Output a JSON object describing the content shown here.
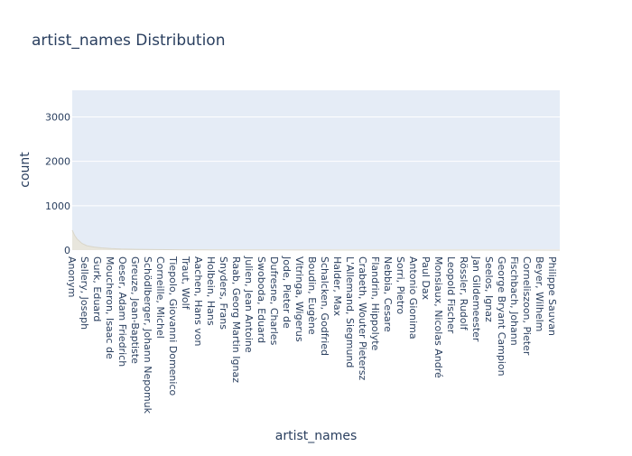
{
  "title": "artist_names Distribution",
  "chart_data": {
    "type": "area",
    "title": "artist_names Distribution",
    "xlabel": "artist_names",
    "ylabel": "count",
    "ylim": [
      0,
      3600
    ],
    "yticks": [
      0,
      1000,
      2000,
      3000
    ],
    "ytick_labels": [
      "0",
      "1000",
      "2000",
      "3000"
    ],
    "grid": true,
    "legend": "none",
    "colors": {
      "plot_bg": "#e5ecf6",
      "grid": "#ffffff",
      "fill": "#e8e6dd",
      "line": "#d9d6ca",
      "text": "#2a3f5f"
    },
    "x_tick_labels": [
      "Anonym",
      "Sellery, Joseph",
      "Gurk, Eduard",
      "Moucheron, Isaac de",
      "Oeser, Adam Friedrich",
      "Greuze, Jean-Baptiste",
      "Schödlberger, Johann Nepomuk",
      "Corneille, Michel",
      "Tiepolo, Giovanni Domenico",
      "Traut, Wolf",
      "Aachen, Hans von",
      "Holbein, Hans",
      "Snyders, Frans",
      "Raab, Georg Martin Ignaz",
      "Julien, Jean Antoine",
      "Swoboda, Eduard",
      "Dufresne, Charles",
      "Jode, Pieter de",
      "Vitringa, Wigerus",
      "Boudin, Eugène",
      "Schalcken, Godfried",
      "Halder, Max",
      "L'Allemand, Siegmund",
      "Crabeth, Wouter Pietersz",
      "Flandrin, Hippolyte",
      "Nebbia, Cesare",
      "Sorri, Pietro",
      "Antonio Gionima",
      "Paul Dax",
      "Monsiaux, Nicolas André",
      "Leopold Fischer",
      "Rössler, Rudolf",
      "Jan Gildemeester",
      "Seelos, Ignaz",
      "George Bryant Campion",
      "Fischbach, Johann",
      "Cornelisz​oon, Pieter",
      "Beyer, Wilhelm",
      "Philippe Sauvan"
    ],
    "curve": {
      "x_fraction": [
        0,
        0.005,
        0.01,
        0.02,
        0.03,
        0.045,
        0.06,
        0.08,
        0.1,
        0.13,
        0.17,
        0.22,
        0.3,
        0.4,
        0.55,
        0.7,
        0.85,
        1.0
      ],
      "y": [
        450,
        330,
        250,
        150,
        100,
        70,
        50,
        35,
        25,
        18,
        12,
        8,
        5,
        4,
        3,
        2,
        2,
        1
      ]
    }
  }
}
